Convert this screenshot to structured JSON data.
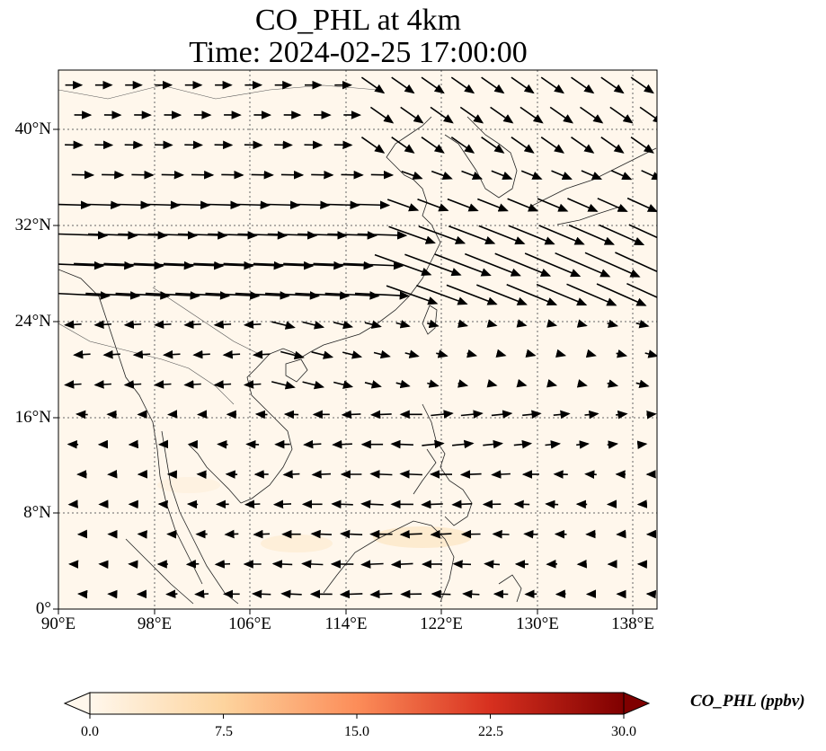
{
  "title": {
    "line1": "CO_PHL at 4km",
    "line2": "Time: 2024-02-25 17:00:00"
  },
  "map": {
    "lon_range": [
      90,
      140
    ],
    "lat_range": [
      0,
      45
    ],
    "lat_ticks": [
      {
        "value": 0,
        "label": "0°"
      },
      {
        "value": 8,
        "label": "8°N"
      },
      {
        "value": 16,
        "label": "16°N"
      },
      {
        "value": 24,
        "label": "24°N"
      },
      {
        "value": 32,
        "label": "32°N"
      },
      {
        "value": 40,
        "label": "40°N"
      }
    ],
    "lon_ticks": [
      {
        "value": 90,
        "label": "90°E"
      },
      {
        "value": 98,
        "label": "98°E"
      },
      {
        "value": 106,
        "label": "106°E"
      },
      {
        "value": 114,
        "label": "114°E"
      },
      {
        "value": 122,
        "label": "122°E"
      },
      {
        "value": 130,
        "label": "130°E"
      },
      {
        "value": 138,
        "label": "138°E"
      }
    ],
    "background_color": "#fff7ec",
    "gridlines": "dotted",
    "coastlines": true,
    "vectors": "wind arrows"
  },
  "colorbar": {
    "label": "CO_PHL (ppbv)",
    "min": 0.0,
    "max": 30.0,
    "ticks": [
      "0.0",
      "7.5",
      "15.0",
      "22.5",
      "30.0"
    ],
    "colormap_stops": [
      "#fff7ec",
      "#fdd49e",
      "#fc8d59",
      "#d7301f",
      "#7f0000"
    ],
    "extend": "both"
  }
}
